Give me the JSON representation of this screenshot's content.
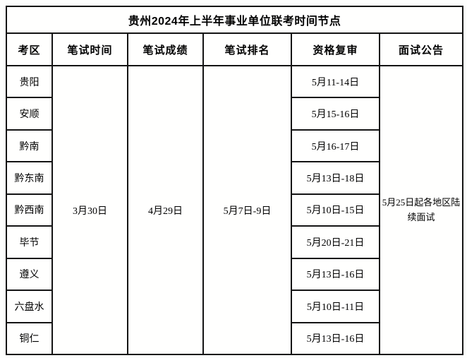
{
  "chart_data": {
    "type": "table",
    "title": "贵州2024年上半年事业单位联考时间节点",
    "columns": [
      "考区",
      "笔试时间",
      "笔试成绩",
      "笔试排名",
      "资格复审",
      "面试公告"
    ],
    "merged": {
      "written_time": "3月30日",
      "written_score": "4月29日",
      "written_rank": "5月7日-9日",
      "interview_notice": "5月25日起各地区陆续面试"
    },
    "rows": [
      {
        "region": "贵阳",
        "review": "5月11-14日"
      },
      {
        "region": "安顺",
        "review": "5月15-16日"
      },
      {
        "region": "黔南",
        "review": "5月16-17日"
      },
      {
        "region": "黔东南",
        "review": "5月13日-18日"
      },
      {
        "region": "黔西南",
        "review": "5月10日-15日"
      },
      {
        "region": "毕节",
        "review": "5月20日-21日"
      },
      {
        "region": "遵义",
        "review": "5月13日-16日"
      },
      {
        "region": "六盘水",
        "review": "5月10日-11日"
      },
      {
        "region": "铜仁",
        "review": "5月13日-16日"
      }
    ]
  },
  "colors": {
    "border": "#141414",
    "text": "#000000",
    "background": "#fdfefd"
  }
}
